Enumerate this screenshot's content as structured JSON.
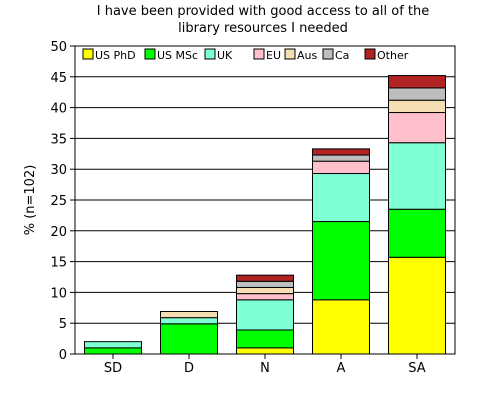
{
  "chart_data": {
    "type": "bar",
    "stacked": true,
    "title_lines": [
      "I have been provided with good access to all of the",
      "library resources I needed"
    ],
    "xlabel": "",
    "ylabel": "% (n=102)",
    "ylim": [
      0,
      50
    ],
    "yticks": [
      0,
      5,
      10,
      15,
      20,
      25,
      30,
      35,
      40,
      45,
      50
    ],
    "categories": [
      "SD",
      "D",
      "N",
      "A",
      "SA"
    ],
    "grid": "horizontal",
    "legend_position": "top-left",
    "series": [
      {
        "name": "US PhD",
        "color": "#ffff00",
        "values": [
          0,
          0,
          1.0,
          8.8,
          15.7
        ]
      },
      {
        "name": "US MSc",
        "color": "#00ff00",
        "values": [
          1.0,
          4.9,
          2.9,
          12.7,
          7.8
        ]
      },
      {
        "name": "UK",
        "color": "#7fffd4",
        "values": [
          1.0,
          1.0,
          4.9,
          7.8,
          10.8
        ]
      },
      {
        "name": "EU",
        "color": "#ffc0cb",
        "values": [
          0,
          0,
          1.0,
          2.0,
          4.9
        ]
      },
      {
        "name": "Aus",
        "color": "#f5deb3",
        "values": [
          0,
          1.0,
          1.0,
          0,
          2.0
        ]
      },
      {
        "name": "Ca",
        "color": "#bebebe",
        "values": [
          0,
          0,
          1.0,
          1.0,
          2.0
        ]
      },
      {
        "name": "Other",
        "color": "#b22222",
        "values": [
          0,
          0,
          1.0,
          1.0,
          2.0
        ]
      }
    ]
  }
}
